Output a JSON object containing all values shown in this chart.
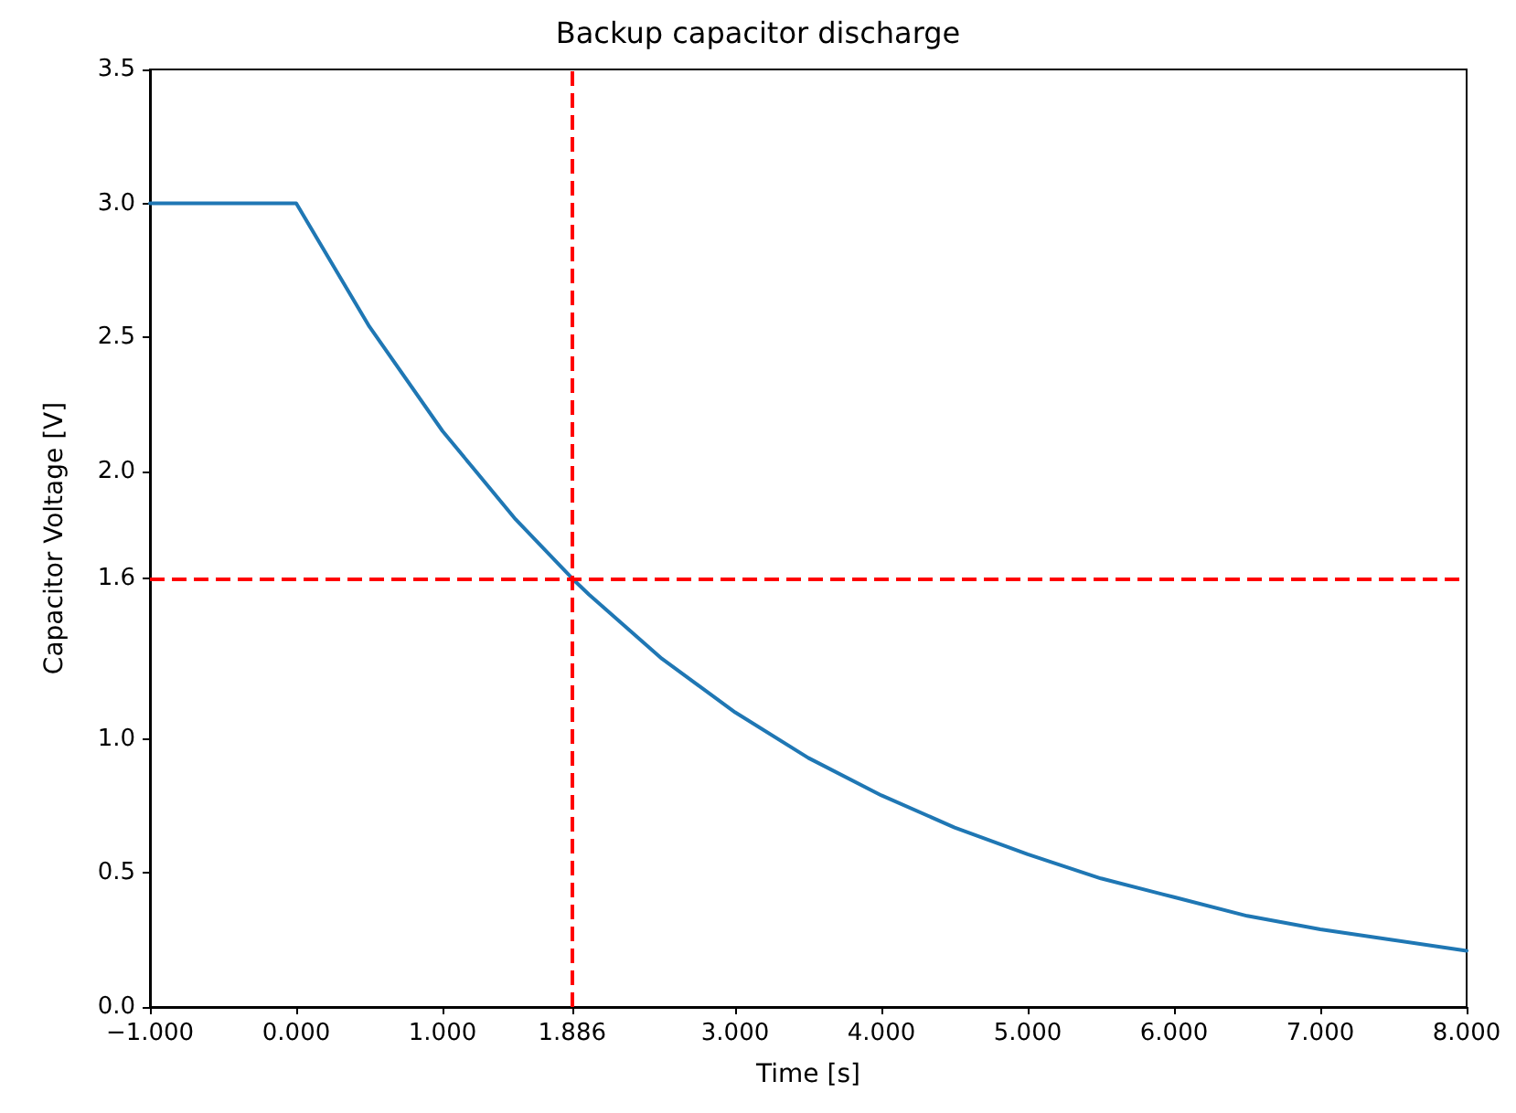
{
  "chart_data": {
    "type": "line",
    "title": "Backup capacitor discharge",
    "xlabel": "Time [s]",
    "ylabel": "Capacitor Voltage [V]",
    "x": [
      -1,
      0,
      0.5,
      1,
      1.5,
      1.886,
      2,
      2.5,
      3,
      3.5,
      4,
      4.5,
      5,
      5.5,
      6,
      6.5,
      7,
      7.5,
      8
    ],
    "series": [
      {
        "color": "#1f77b4",
        "values": [
          3.0,
          3.0,
          2.54,
          2.15,
          1.82,
          1.6,
          1.54,
          1.3,
          1.1,
          0.93,
          0.79,
          0.67,
          0.57,
          0.48,
          0.41,
          0.34,
          0.29,
          0.25,
          0.21
        ]
      }
    ],
    "xlim": [
      -1,
      8
    ],
    "xticks": [
      {
        "value": -1,
        "label": "−1.000"
      },
      {
        "value": 0,
        "label": "0.000"
      },
      {
        "value": 1,
        "label": "1.000"
      },
      {
        "value": 1.886,
        "label": "1.886"
      },
      {
        "value": 3,
        "label": "3.000"
      },
      {
        "value": 4,
        "label": "4.000"
      },
      {
        "value": 5,
        "label": "5.000"
      },
      {
        "value": 6,
        "label": "6.000"
      },
      {
        "value": 7,
        "label": "7.000"
      },
      {
        "value": 8,
        "label": "8.000"
      }
    ],
    "ylim": [
      0,
      3.5
    ],
    "yticks": [
      {
        "value": 0,
        "label": "0.0"
      },
      0.5,
      {
        "value": 1,
        "label": "1.0"
      },
      1.6,
      {
        "value": 2,
        "label": "2.0"
      },
      2.5,
      {
        "value": 3,
        "label": "3.0"
      },
      3.5
    ],
    "ref_lines": [
      {
        "axis": "x",
        "value": 1.886,
        "color": "#ff0000",
        "line_style": "dashed"
      },
      {
        "axis": "y",
        "value": 1.6,
        "color": "#ff0000",
        "line_style": "dashed"
      }
    ],
    "marker": "none",
    "line_style": "solid"
  }
}
